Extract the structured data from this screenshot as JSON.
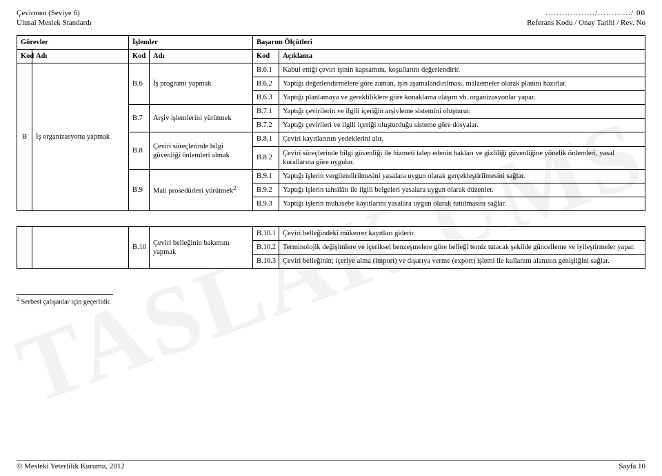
{
  "header": {
    "left1": "Çevirmen (Seviye 6)",
    "left2": "Ulusal Meslek Standardı",
    "right1_dots": "………………/…………/ 00",
    "right2": "Referans Kodu / Onay Tarihi / Rev. No"
  },
  "watermark": "TASLAK UMS",
  "titles": {
    "gorevler": "Görevler",
    "islemler": "İşlemler",
    "basarim": "Başarım Ölçütleri"
  },
  "subheads": {
    "kod": "Kod",
    "adi": "Adı",
    "aciklama": "Açıklama"
  },
  "block1": {
    "rowB": {
      "kod": "B",
      "adi": "İş organizasyonu yapmak"
    },
    "b6": {
      "kod": "B.6",
      "adi": "İş programı yapmak"
    },
    "b7": {
      "kod": "B.7",
      "adi": "Arşiv işlemlerini yürütmek"
    },
    "b8": {
      "kod": "B.8",
      "adi": "Çeviri süreçlerinde bilgi güvenliği önlemleri almak"
    },
    "b9": {
      "kod": "B.9",
      "adi": "Mali prosedürleri yürütmek",
      "sup": "2"
    },
    "r": {
      "b61": {
        "k": "B.6.1",
        "t": "Kabul ettiği çeviri işinin kapsamını, koşullarını değerlendirir."
      },
      "b62": {
        "k": "B.6.2",
        "t": "Yaptığı değerlendirmelere göre zaman, işin aşamalandırılması, malzemeler olarak planını hazırlar."
      },
      "b63": {
        "k": "B.6.3",
        "t": "Yaptığı planlamaya ve gerekliliklere göre konaklama ulaşım vb. organizasyonlar yapar."
      },
      "b71": {
        "k": "B.7.1",
        "t": "Yaptığı çevirilerin ve ilgili içeriğin arşivleme sistemini oluşturur."
      },
      "b72": {
        "k": "B.7.2",
        "t": "Yaptığı çevirileri ve ilgili içeriği oluşturduğu sisteme göre dosyalar."
      },
      "b81": {
        "k": "B.8.1",
        "t": "Çeviri kayıtlarının yedeklerini alır."
      },
      "b82": {
        "k": "B.8.2",
        "t": "Çeviri süreçlerinde bilgi güvenliği ile hizmeti talep edenin hakları ve gizliliği güvenliğine yönelik önlemleri, yasal kurallarına göre uygular."
      },
      "b91": {
        "k": "B.9.1",
        "t": "Yaptığı işlerin vergilendirilmesini yasalara uygun olarak gerçekleştirilmesini sağlar."
      },
      "b92": {
        "k": "B.9.2",
        "t": "Yaptığı işlerin tahsilâtı ile ilgili belgeleri yasalara uygun olarak düzenler."
      },
      "b93": {
        "k": "B.9.3",
        "t": "Yaptığı işlerin muhasebe kayıtlarını yasalara uygun olarak tutulmasını sağlar."
      }
    }
  },
  "block2": {
    "b10": {
      "kod": "B.10",
      "adi": "Çeviri belleğinin bakımını yapmak"
    },
    "r": {
      "b101": {
        "k": "B.10.1",
        "t": "Çeviri belleğindeki mükerrer kayıtları giderir."
      },
      "b102": {
        "k": "B.10.2",
        "t": "Terminolojik değişimlere ve içeriksel benzeşmelere göre belleği temiz tutacak şekilde güncelleme ve iyileştirmeler yapar."
      },
      "b103": {
        "k": "B.10.3",
        "t": "Çeviri belleğinin; içeriye alma (import) ve dışarıya verme (export) işlemi ile kullanım alanının genişliğini sağlar."
      }
    }
  },
  "footnote": {
    "mark": "2",
    "text": " Serbest çalışanlar için geçerlidir."
  },
  "footer": {
    "left": "© Mesleki Yeterlilik Kurumu, 2012",
    "right": "Sayfa 10"
  }
}
